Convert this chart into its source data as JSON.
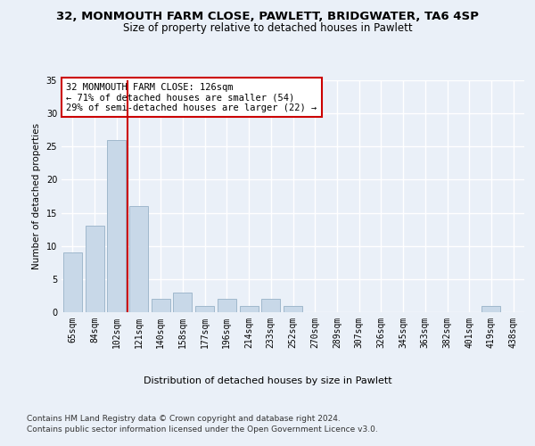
{
  "title1": "32, MONMOUTH FARM CLOSE, PAWLETT, BRIDGWATER, TA6 4SP",
  "title2": "Size of property relative to detached houses in Pawlett",
  "xlabel": "Distribution of detached houses by size in Pawlett",
  "ylabel": "Number of detached properties",
  "categories": [
    "65sqm",
    "84sqm",
    "102sqm",
    "121sqm",
    "140sqm",
    "158sqm",
    "177sqm",
    "196sqm",
    "214sqm",
    "233sqm",
    "252sqm",
    "270sqm",
    "289sqm",
    "307sqm",
    "326sqm",
    "345sqm",
    "363sqm",
    "382sqm",
    "401sqm",
    "419sqm",
    "438sqm"
  ],
  "values": [
    9,
    13,
    26,
    16,
    2,
    3,
    1,
    2,
    1,
    2,
    1,
    0,
    0,
    0,
    0,
    0,
    0,
    0,
    0,
    1,
    0
  ],
  "bar_color": "#c8d8e8",
  "bar_edge_color": "#a0b8cc",
  "vline_color": "#cc0000",
  "annotation_text": "32 MONMOUTH FARM CLOSE: 126sqm\n← 71% of detached houses are smaller (54)\n29% of semi-detached houses are larger (22) →",
  "annotation_box_color": "#ffffff",
  "annotation_box_edge": "#cc0000",
  "footer1": "Contains HM Land Registry data © Crown copyright and database right 2024.",
  "footer2": "Contains public sector information licensed under the Open Government Licence v3.0.",
  "ylim": [
    0,
    35
  ],
  "yticks": [
    0,
    5,
    10,
    15,
    20,
    25,
    30,
    35
  ],
  "bg_color": "#eaf0f8",
  "plot_bg_color": "#eaf0f8",
  "grid_color": "#ffffff",
  "title1_fontsize": 9.5,
  "title2_fontsize": 8.5,
  "xlabel_fontsize": 8,
  "ylabel_fontsize": 7.5,
  "tick_fontsize": 7,
  "annotation_fontsize": 7.5,
  "footer_fontsize": 6.5
}
